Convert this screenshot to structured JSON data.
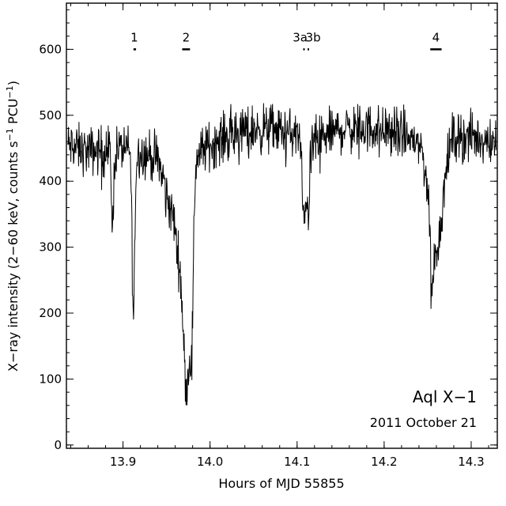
{
  "chart_data": {
    "type": "line",
    "xlabel": "Hours of MJD 55855",
    "ylabel_main": "X−ray intensity (2−60 keV, counts s",
    "ylabel_sup1": "−1",
    "ylabel_mid": " PCU",
    "ylabel_sup2": "−1",
    "ylabel_end": ")",
    "xlim": [
      13.835,
      14.33
    ],
    "ylim": [
      -5,
      670
    ],
    "xticks": [
      13.9,
      14.0,
      14.1,
      14.2,
      14.3
    ],
    "xtick_labels": [
      "13.9",
      "14.0",
      "14.1",
      "14.2",
      "14.3"
    ],
    "yticks": [
      0,
      100,
      200,
      300,
      400,
      500,
      600
    ],
    "ytick_labels": [
      "0",
      "100",
      "200",
      "300",
      "400",
      "500",
      "600"
    ],
    "grid": false,
    "annotations": {
      "source": "Aql X−1",
      "date": "2011 October 21"
    },
    "markers": [
      {
        "label": "1",
        "x0": 13.912,
        "x1": 13.915,
        "y": 600
      },
      {
        "label": "2",
        "x0": 13.968,
        "x1": 13.977,
        "y": 600
      },
      {
        "label": "3a",
        "x0": 14.107,
        "x1": 14.108,
        "y": 600
      },
      {
        "label": "3b",
        "x0": 14.112,
        "x1": 14.113,
        "y": 600
      },
      {
        "label": "4",
        "x0": 14.253,
        "x1": 14.266,
        "y": 600
      }
    ],
    "series": [
      {
        "baseline": [
          [
            13.835,
            455
          ],
          [
            13.86,
            445
          ],
          [
            13.9,
            450
          ],
          [
            13.93,
            440
          ],
          [
            13.955,
            420
          ],
          [
            13.985,
            440
          ],
          [
            14.0,
            455
          ],
          [
            14.03,
            475
          ],
          [
            14.07,
            480
          ],
          [
            14.1,
            470
          ],
          [
            14.115,
            455
          ],
          [
            14.15,
            480
          ],
          [
            14.2,
            480
          ],
          [
            14.24,
            460
          ],
          [
            14.265,
            430
          ],
          [
            14.28,
            470
          ],
          [
            14.33,
            460
          ]
        ],
        "dips": [
          [
            13.888,
            0.0012,
            120
          ],
          [
            13.912,
            0.0015,
            250
          ],
          [
            13.955,
            0.006,
            60
          ],
          [
            13.965,
            0.004,
            120
          ],
          [
            13.973,
            0.0035,
            330
          ],
          [
            13.979,
            0.002,
            220
          ],
          [
            14.108,
            0.002,
            130
          ],
          [
            14.113,
            0.0015,
            90
          ],
          [
            14.259,
            0.007,
            140
          ],
          [
            14.255,
            0.0015,
            90
          ]
        ],
        "noise": 28
      }
    ]
  }
}
